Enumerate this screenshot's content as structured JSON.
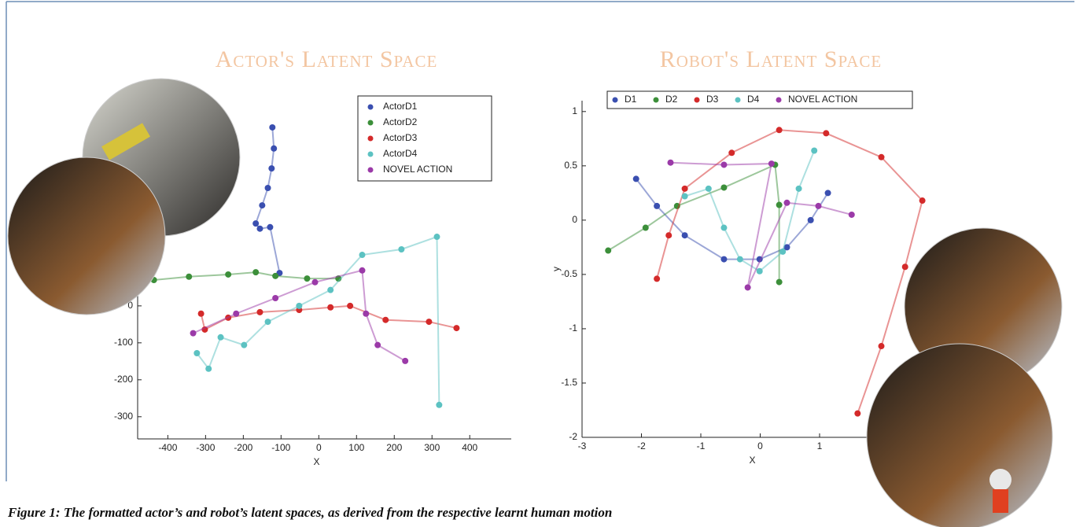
{
  "chart_data": [
    {
      "type": "scatter",
      "title": "Actor's Latent Space",
      "xlabel": "X",
      "legend": "upper right",
      "xlim": [
        -480,
        510
      ],
      "ylim": [
        -360,
        600
      ],
      "xticks": [
        -400,
        -300,
        -200,
        -100,
        0,
        100,
        200,
        300,
        400
      ],
      "yticks": [
        -300,
        -200,
        -100,
        0
      ],
      "series": [
        {
          "name": "ActorD1",
          "color": "#3a4fb0",
          "x": [
            -123,
            -119,
            -125,
            -135,
            -150,
            -167,
            -156,
            -129,
            -104
          ],
          "values": [
            483,
            426,
            372,
            319,
            272,
            223,
            209,
            213,
            89
          ]
        },
        {
          "name": "ActorD2",
          "color": "#3c8f3a",
          "x": [
            -437,
            -344,
            -240,
            -167,
            -115,
            -31,
            52
          ],
          "values": [
            70,
            79,
            85,
            91,
            81,
            74,
            74
          ]
        },
        {
          "name": "ActorD3",
          "color": "#d42a2a",
          "x": [
            -312,
            -302,
            -240,
            -156,
            -52,
            31,
            83,
            177,
            292,
            365
          ],
          "values": [
            -21,
            -64,
            -32,
            -17,
            -11,
            -4,
            0,
            -38,
            -43,
            -60
          ]
        },
        {
          "name": "ActorD4",
          "color": "#5cc2c2",
          "x": [
            -323,
            -292,
            -260,
            -198,
            -135,
            -52,
            31,
            115,
            219,
            313,
            319
          ],
          "values": [
            -128,
            -170,
            -85,
            -106,
            -43,
            0,
            43,
            138,
            153,
            187,
            -268
          ]
        },
        {
          "name": "NOVEL ACTION",
          "color": "#9b3aa8",
          "x": [
            -333,
            -219,
            -115,
            -10,
            115,
            125,
            156,
            229
          ],
          "values": [
            -74,
            -21,
            21,
            64,
            96,
            -21,
            -106,
            -149
          ]
        }
      ]
    },
    {
      "type": "scatter",
      "title": "Robot's Latent Space",
      "xlabel": "X",
      "ylabel": "y",
      "legend": "upper center",
      "xlim": [
        -3,
        3
      ],
      "ylim": [
        -2,
        1.1
      ],
      "xticks": [
        -3,
        -2,
        -1,
        0,
        1
      ],
      "yticks": [
        -2,
        -1.5,
        -1,
        -0.5,
        0,
        0.5,
        1
      ],
      "series": [
        {
          "name": "D1",
          "color": "#3a4fb0",
          "x": [
            -2.09,
            -1.74,
            -1.27,
            -0.61,
            -0.01,
            0.45,
            0.85,
            1.14
          ],
          "values": [
            0.38,
            0.13,
            -0.14,
            -0.36,
            -0.36,
            -0.25,
            0,
            0.25
          ]
        },
        {
          "name": "D2",
          "color": "#3c8f3a",
          "x": [
            -2.56,
            -1.93,
            -1.4,
            -0.61,
            0.25,
            0.32,
            0.32
          ],
          "values": [
            -0.28,
            -0.07,
            0.13,
            0.3,
            0.51,
            0.14,
            -0.57
          ]
        },
        {
          "name": "D3",
          "color": "#d42a2a",
          "x": [
            -1.74,
            -1.54,
            -1.27,
            -0.48,
            0.32,
            1.11,
            2.04,
            2.73,
            2.44,
            2.04,
            1.64
          ],
          "values": [
            -0.54,
            -0.14,
            0.29,
            0.62,
            0.83,
            0.8,
            0.58,
            0.18,
            -0.43,
            -1.16,
            -1.78
          ]
        },
        {
          "name": "D4",
          "color": "#5cc2c2",
          "x": [
            -1.27,
            -0.87,
            -0.61,
            -0.34,
            -0.01,
            0.38,
            0.65,
            0.91
          ],
          "values": [
            0.22,
            0.29,
            -0.07,
            -0.36,
            -0.47,
            -0.29,
            0.29,
            0.64
          ]
        },
        {
          "name": "NOVEL ACTION",
          "color": "#9b3aa8",
          "x": [
            -1.51,
            -0.61,
            0.19,
            -0.21,
            0.45,
            0.98,
            1.54
          ],
          "values": [
            0.53,
            0.51,
            0.52,
            -0.62,
            0.16,
            0.13,
            0.05
          ]
        }
      ]
    }
  ],
  "caption": "Figure 1: The formatted actor’s and robot’s latent spaces, as derived from the respective learnt human motion"
}
